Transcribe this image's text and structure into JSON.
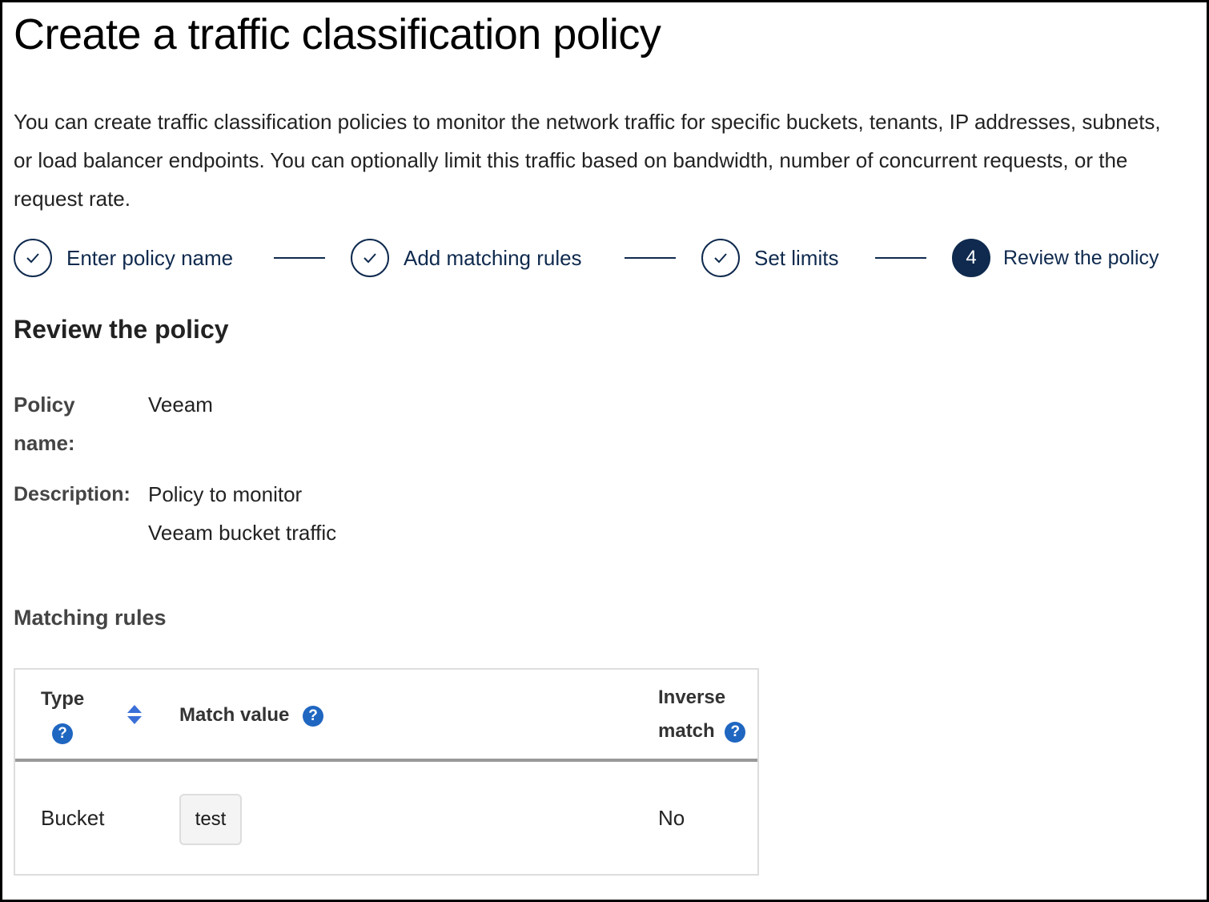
{
  "page": {
    "title": "Create a traffic classification policy",
    "intro": "You can create traffic classification policies to monitor the network traffic for specific buckets, tenants, IP addresses, subnets, or load balancer endpoints. You can optionally limit this traffic based on bandwidth, number of concurrent requests, or the request rate."
  },
  "steps": [
    {
      "label": "Enter policy name",
      "state": "complete",
      "icon": "check-icon"
    },
    {
      "label": "Add matching rules",
      "state": "complete",
      "icon": "check-icon"
    },
    {
      "label": "Set limits",
      "state": "complete",
      "icon": "check-icon"
    },
    {
      "label": "Review the policy",
      "state": "active",
      "number": "4"
    }
  ],
  "review": {
    "heading": "Review the policy",
    "policy_name_label": "Policy name:",
    "policy_name": "Veeam",
    "description_label": "Description:",
    "description": "Policy to monitor Veeam bucket traffic",
    "matching_rules_heading": "Matching rules"
  },
  "table": {
    "columns": {
      "type": "Type",
      "match_value": "Match value",
      "inverse_match": "Inverse match"
    },
    "help_glyph": "?",
    "rows": [
      {
        "type": "Bucket",
        "match_value": "test",
        "inverse_match": "No"
      }
    ]
  },
  "colors": {
    "primary": "#0f2a4e",
    "help": "#1f66c1",
    "sort": "#3a6fd8"
  }
}
